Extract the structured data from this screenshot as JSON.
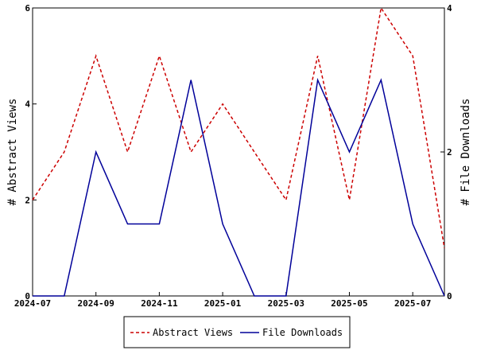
{
  "chart_data": {
    "type": "line",
    "x": [
      "2024-07",
      "2024-08",
      "2024-09",
      "2024-10",
      "2024-11",
      "2024-12",
      "2025-01",
      "2025-02",
      "2025-03",
      "2025-04",
      "2025-05",
      "2025-06",
      "2025-07",
      "2025-08"
    ],
    "x_tick_labels": [
      "2024-07",
      "2024-09",
      "2024-11",
      "2025-01",
      "2025-03",
      "2025-05",
      "2025-07"
    ],
    "y_left": {
      "label": "# Abstract Views",
      "range": [
        0,
        6
      ],
      "ticks": [
        "0",
        "2",
        "4",
        "6"
      ]
    },
    "y_right": {
      "label": "# File Downloads",
      "range": [
        0,
        4
      ],
      "ticks": [
        "0",
        "2",
        "4"
      ]
    },
    "series": [
      {
        "name": "Abstract Views",
        "axis": "left",
        "color": "#cc0000",
        "style": "dashed",
        "values": [
          2,
          3,
          5,
          3,
          5,
          3,
          4,
          3,
          2,
          5,
          2,
          6,
          5,
          1
        ]
      },
      {
        "name": "File Downloads",
        "axis": "right",
        "color": "#000099",
        "style": "solid",
        "values": [
          0,
          0,
          2,
          1,
          1,
          3,
          1,
          0,
          0,
          3,
          2,
          3,
          1,
          0
        ]
      }
    ],
    "grid": false,
    "legend_position": "bottom"
  }
}
